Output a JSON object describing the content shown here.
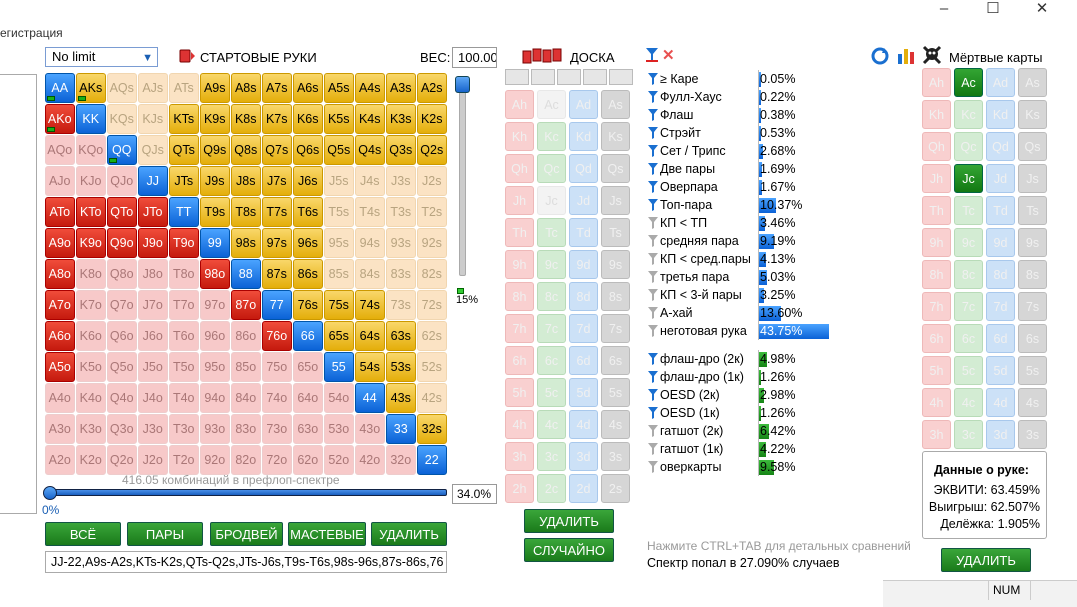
{
  "window": {
    "title_fragment": "егистрация",
    "controls": [
      "–",
      "☐",
      "✕"
    ]
  },
  "range": {
    "limit_select": "No limit",
    "section_title": "СТАРТОВЫЕ РУКИ",
    "weight_label": "ВЕС:",
    "weight_value": "100.00",
    "vertical_slider_pct": "15%",
    "combos_text": "416.05 комбинаций в префлоп-спектре",
    "horizontal_pct": "34.0%",
    "zero_pct": "0%",
    "buttons": [
      "ВСЁ",
      "ПАРЫ",
      "БРОДВЕЙ",
      "МАСТЕВЫЕ",
      "УДАЛИТЬ"
    ],
    "range_text": "JJ-22,A9s-A2s,KTs-K2s,QTs-Q2s,JTs-J6s,T9s-T6s,98s-96s,87s-86s,76",
    "hands": [
      [
        "AA",
        "AKs",
        "AQs",
        "AJs",
        "ATs",
        "A9s",
        "A8s",
        "A7s",
        "A6s",
        "A5s",
        "A4s",
        "A3s",
        "A2s"
      ],
      [
        "AKo",
        "KK",
        "KQs",
        "KJs",
        "KTs",
        "K9s",
        "K8s",
        "K7s",
        "K6s",
        "K5s",
        "K4s",
        "K3s",
        "K2s"
      ],
      [
        "AQo",
        "KQo",
        "QQ",
        "QJs",
        "QTs",
        "Q9s",
        "Q8s",
        "Q7s",
        "Q6s",
        "Q5s",
        "Q4s",
        "Q3s",
        "Q2s"
      ],
      [
        "AJo",
        "KJo",
        "QJo",
        "JJ",
        "JTs",
        "J9s",
        "J8s",
        "J7s",
        "J6s",
        "J5s",
        "J4s",
        "J3s",
        "J2s"
      ],
      [
        "ATo",
        "KTo",
        "QTo",
        "JTo",
        "TT",
        "T9s",
        "T8s",
        "T7s",
        "T6s",
        "T5s",
        "T4s",
        "T3s",
        "T2s"
      ],
      [
        "A9o",
        "K9o",
        "Q9o",
        "J9o",
        "T9o",
        "99",
        "98s",
        "97s",
        "96s",
        "95s",
        "94s",
        "93s",
        "92s"
      ],
      [
        "A8o",
        "K8o",
        "Q8o",
        "J8o",
        "T8o",
        "98o",
        "88",
        "87s",
        "86s",
        "85s",
        "84s",
        "83s",
        "82s"
      ],
      [
        "A7o",
        "K7o",
        "Q7o",
        "J7o",
        "T7o",
        "97o",
        "87o",
        "77",
        "76s",
        "75s",
        "74s",
        "73s",
        "72s"
      ],
      [
        "A6o",
        "K6o",
        "Q6o",
        "J6o",
        "T6o",
        "96o",
        "86o",
        "76o",
        "66",
        "65s",
        "64s",
        "63s",
        "62s"
      ],
      [
        "A5o",
        "K5o",
        "Q5o",
        "J5o",
        "T5o",
        "95o",
        "85o",
        "75o",
        "65o",
        "55",
        "54s",
        "53s",
        "52s"
      ],
      [
        "A4o",
        "K4o",
        "Q4o",
        "J4o",
        "T4o",
        "94o",
        "84o",
        "74o",
        "64o",
        "54o",
        "44",
        "43s",
        "42s"
      ],
      [
        "A3o",
        "K3o",
        "Q3o",
        "J3o",
        "T3o",
        "93o",
        "83o",
        "73o",
        "63o",
        "53o",
        "43o",
        "33",
        "32s"
      ],
      [
        "A2o",
        "K2o",
        "Q2o",
        "J2o",
        "T2o",
        "92o",
        "82o",
        "72o",
        "62o",
        "52o",
        "42o",
        "32o",
        "22"
      ]
    ],
    "selected_hands": [
      "AA",
      "AKs",
      "AKo",
      "KK",
      "QQ",
      "JJ",
      "TT",
      "99",
      "88",
      "77",
      "66",
      "55",
      "44",
      "33",
      "22",
      "A9s",
      "A8s",
      "A7s",
      "A6s",
      "A5s",
      "A4s",
      "A3s",
      "A2s",
      "KTs",
      "K9s",
      "K8s",
      "K7s",
      "K6s",
      "K5s",
      "K4s",
      "K3s",
      "K2s",
      "QTs",
      "Q9s",
      "Q8s",
      "Q7s",
      "Q6s",
      "Q5s",
      "Q4s",
      "Q3s",
      "Q2s",
      "JTs",
      "J9s",
      "J8s",
      "J7s",
      "J6s",
      "T9s",
      "T8s",
      "T7s",
      "T6s",
      "98s",
      "97s",
      "96s",
      "87s",
      "86s",
      "76s",
      "75s",
      "74s",
      "65s",
      "64s",
      "63s",
      "54s",
      "53s",
      "43s",
      "32s",
      "ATo",
      "KTo",
      "QTo",
      "JTo",
      "A9o",
      "K9o",
      "Q9o",
      "J9o",
      "T9o",
      "A8o",
      "98o",
      "A7o",
      "87o",
      "A6o",
      "76o",
      "A5o"
    ],
    "marked_hands": [
      "AA",
      "AKs",
      "AKo",
      "QQ"
    ]
  },
  "board": {
    "title": "ДОСКА",
    "slots": [
      "",
      "",
      "",
      "",
      ""
    ],
    "ranks": [
      "A",
      "K",
      "Q",
      "J",
      "T",
      "9",
      "8",
      "7",
      "6",
      "5",
      "4",
      "3",
      "2"
    ],
    "suits": [
      "h",
      "c",
      "d",
      "s"
    ],
    "dim_cards": [
      "Ac",
      "Jc"
    ],
    "buttons": [
      "УДАЛИТЬ",
      "СЛУЧАЙНО"
    ]
  },
  "stats": {
    "made": [
      {
        "label": "≥ Каре",
        "value": "0.05%",
        "pct": 0.05,
        "filter": true
      },
      {
        "label": "Фулл-Хаус",
        "value": "0.22%",
        "pct": 0.22,
        "filter": true
      },
      {
        "label": "Флаш",
        "value": "0.38%",
        "pct": 0.38,
        "filter": true
      },
      {
        "label": "Стрэйт",
        "value": "0.53%",
        "pct": 0.53,
        "filter": true
      },
      {
        "label": "Сет / Трипс",
        "value": "2.68%",
        "pct": 2.68,
        "filter": true
      },
      {
        "label": "Две пары",
        "value": "1.69%",
        "pct": 1.69,
        "filter": true
      },
      {
        "label": "Оверпара",
        "value": "1.67%",
        "pct": 1.67,
        "filter": true
      },
      {
        "label": "Топ-пара",
        "value": "10.37%",
        "pct": 10.37,
        "filter": true
      },
      {
        "label": "КП < ТП",
        "value": "3.46%",
        "pct": 3.46,
        "filter": false
      },
      {
        "label": "средняя пара",
        "value": "9.19%",
        "pct": 9.19,
        "filter": false
      },
      {
        "label": "КП < сред.пары",
        "value": "4.13%",
        "pct": 4.13,
        "filter": false
      },
      {
        "label": "третья пара",
        "value": "5.03%",
        "pct": 5.03,
        "filter": false
      },
      {
        "label": "КП < 3-й пары",
        "value": "3.25%",
        "pct": 3.25,
        "filter": false
      },
      {
        "label": "А-хай",
        "value": "13.60%",
        "pct": 13.6,
        "filter": false
      },
      {
        "label": "неготовая рука",
        "value": "43.75%",
        "pct": 43.75,
        "filter": false
      }
    ],
    "draws": [
      {
        "label": "флаш-дро (2к)",
        "value": "4.98%",
        "pct": 4.98,
        "filter": true
      },
      {
        "label": "флаш-дро (1к)",
        "value": "1.26%",
        "pct": 1.26,
        "filter": true
      },
      {
        "label": "OESD (2к)",
        "value": "2.98%",
        "pct": 2.98,
        "filter": true
      },
      {
        "label": "OESD (1к)",
        "value": "1.26%",
        "pct": 1.26,
        "filter": true
      },
      {
        "label": "гатшот (2к)",
        "value": "6.42%",
        "pct": 6.42,
        "filter": false
      },
      {
        "label": "гатшот (1к)",
        "value": "4.22%",
        "pct": 4.22,
        "filter": false
      },
      {
        "label": "оверкарты",
        "value": "9.58%",
        "pct": 9.58,
        "filter": false
      }
    ],
    "hint": "Нажмите CTRL+TAB для детальных сравнений",
    "spectr": "Спектр попал в 27.090% случаев"
  },
  "dead": {
    "title": "Мёртвые карты",
    "selected": [
      "Ac",
      "Jc"
    ],
    "hand_info_title": "Данные о руке:",
    "equity": "ЭКВИТИ: 63.459%",
    "win": "Выигрыш: 62.507%",
    "split": "Делёжка: 1.905%",
    "delete_button": "УДАЛИТЬ"
  },
  "status": {
    "num": "NUM"
  },
  "colors": {
    "accent_blue": "#1a5fb4",
    "select_green": "#1a7a1a",
    "pair": "#4aa3ff",
    "suited": "#e4ae0a",
    "offsuit": "#f04c3a"
  }
}
